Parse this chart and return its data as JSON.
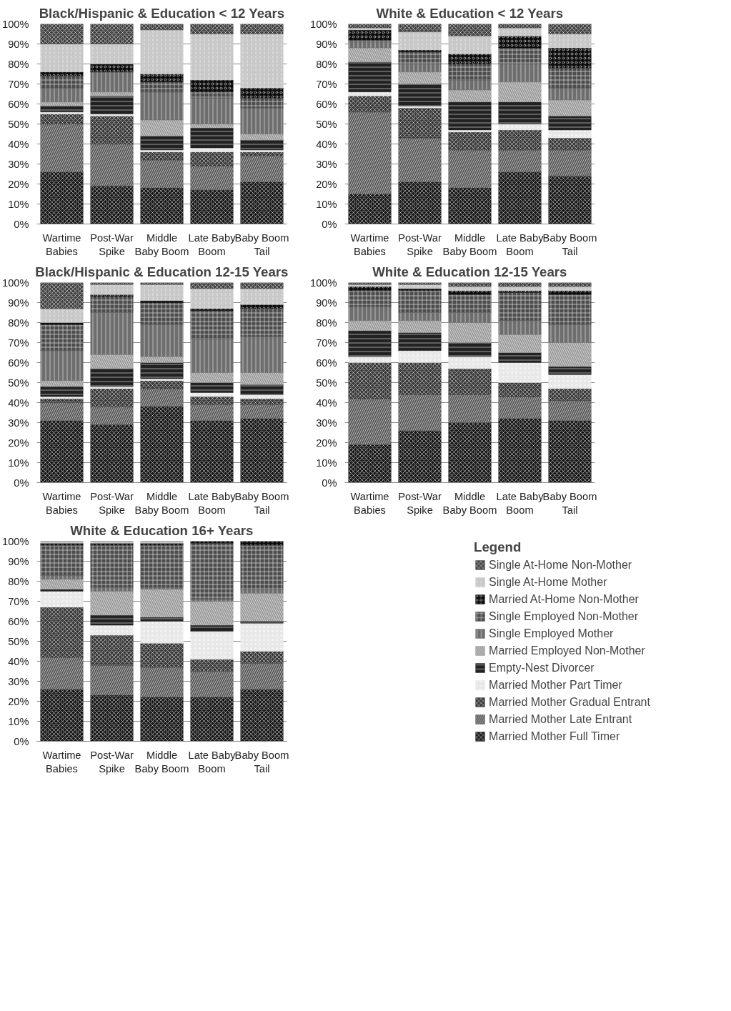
{
  "chart_data": [
    {
      "type": "bar",
      "stacked": true,
      "title": "Black/Hispanic & Education < 12 Years",
      "categories": [
        "Wartime Babies",
        "Post-War Spike",
        "Middle Baby Boom",
        "Late Baby Boom",
        "Baby Boom Tail"
      ],
      "ylim": [
        0,
        100
      ],
      "yticks": [
        {
          "value": 0,
          "label": "0%"
        },
        {
          "value": 10,
          "label": "10%"
        },
        {
          "value": 20,
          "label": "20%"
        },
        {
          "value": 30,
          "label": "30%"
        },
        {
          "value": 40,
          "label": "40%"
        },
        {
          "value": 50,
          "label": "50%"
        },
        {
          "value": 60,
          "label": "60%"
        },
        {
          "value": 70,
          "label": "70%"
        },
        {
          "value": 80,
          "label": "80%"
        },
        {
          "value": 90,
          "label": "90%"
        },
        {
          "value": 100,
          "label": "100%"
        }
      ],
      "grid": "y",
      "legend": "bottom right",
      "legend_title": "Legend",
      "series": [
        {
          "name": "Married Mother Full Timer",
          "color": "#1a1a1a",
          "values": [
            26,
            19,
            18,
            17,
            21
          ]
        },
        {
          "name": "Married Mother Late Entrant",
          "color": "#595959",
          "values": [
            24,
            21,
            14,
            12,
            13
          ]
        },
        {
          "name": "Married Mother Gradual Entrant",
          "color": "#3a3a3a",
          "values": [
            5,
            14,
            4,
            7,
            2
          ]
        },
        {
          "name": "Married Mother Part Timer",
          "color": "#e8e8e8",
          "values": [
            1,
            1,
            1,
            2,
            1
          ]
        },
        {
          "name": "Empty-Nest Divorcer",
          "color": "#222222",
          "values": [
            3,
            9,
            7,
            10,
            5
          ]
        },
        {
          "name": "Married Employed Non-Mother",
          "color": "#9a9a9a",
          "values": [
            2,
            2,
            8,
            2,
            3
          ]
        },
        {
          "name": "Single Employed Mother",
          "color": "#6e6e6e",
          "values": [
            7,
            10,
            14,
            13,
            13
          ]
        },
        {
          "name": "Single Employed Non-Mother",
          "color": "#4d4d4d",
          "values": [
            6,
            0,
            5,
            3,
            5
          ]
        },
        {
          "name": "Married At-Home Non-Mother",
          "color": "#0d0d0d",
          "values": [
            2,
            4,
            4,
            6,
            5
          ]
        },
        {
          "name": "Single At-Home Mother",
          "color": "#c8c8c8",
          "values": [
            14,
            10,
            22,
            23,
            27
          ]
        },
        {
          "name": "Single At-Home Non-Mother",
          "color": "#444444",
          "values": [
            10,
            10,
            3,
            5,
            5
          ]
        }
      ]
    },
    {
      "type": "bar",
      "stacked": true,
      "title": "White & Education < 12 Years",
      "categories": [
        "Wartime Babies",
        "Post-War Spike",
        "Middle Baby Boom",
        "Late Baby Boom",
        "Baby Boom Tail"
      ],
      "ylim": [
        0,
        100
      ],
      "yticks": [
        {
          "value": 0,
          "label": "0%"
        },
        {
          "value": 10,
          "label": "10%"
        },
        {
          "value": 20,
          "label": "20%"
        },
        {
          "value": 30,
          "label": "30%"
        },
        {
          "value": 40,
          "label": "40%"
        },
        {
          "value": 50,
          "label": "50%"
        },
        {
          "value": 60,
          "label": "60%"
        },
        {
          "value": 70,
          "label": "70%"
        },
        {
          "value": 80,
          "label": "80%"
        },
        {
          "value": 90,
          "label": "90%"
        },
        {
          "value": 100,
          "label": "100%"
        }
      ],
      "grid": "y",
      "series": [
        {
          "color": "#1a1a1a",
          "values": [
            15,
            21,
            18,
            26,
            24
          ]
        },
        {
          "color": "#595959",
          "values": [
            41,
            22,
            19,
            11,
            13
          ]
        },
        {
          "color": "#3a3a3a",
          "values": [
            8,
            15,
            9,
            10,
            6
          ]
        },
        {
          "color": "#e8e8e8",
          "values": [
            2,
            1,
            1,
            3,
            4
          ]
        },
        {
          "color": "#222222",
          "values": [
            15,
            11,
            14,
            11,
            7
          ]
        },
        {
          "color": "#9a9a9a",
          "values": [
            7,
            6,
            6,
            10,
            8
          ]
        },
        {
          "color": "#6e6e6e",
          "values": [
            3,
            4,
            5,
            9,
            6
          ]
        },
        {
          "color": "#4d4d4d",
          "values": [
            1,
            6,
            8,
            8,
            10
          ]
        },
        {
          "color": "#0d0d0d",
          "values": [
            5,
            1,
            5,
            6,
            10
          ]
        },
        {
          "color": "#c8c8c8",
          "values": [
            1,
            9,
            9,
            4,
            7
          ]
        },
        {
          "color": "#444444",
          "values": [
            2,
            4,
            6,
            2,
            5
          ]
        }
      ]
    },
    {
      "type": "bar",
      "stacked": true,
      "title": "Black/Hispanic & Education 12-15 Years",
      "categories": [
        "Wartime Babies",
        "Post-War Spike",
        "Middle Baby Boom",
        "Late Baby Boom",
        "Baby Boom Tail"
      ],
      "ylim": [
        0,
        100
      ],
      "yticks": [
        {
          "value": 0,
          "label": "0%"
        },
        {
          "value": 10,
          "label": "10%"
        },
        {
          "value": 20,
          "label": "20%"
        },
        {
          "value": 30,
          "label": "30%"
        },
        {
          "value": 40,
          "label": "40%"
        },
        {
          "value": 50,
          "label": "50%"
        },
        {
          "value": 60,
          "label": "60%"
        },
        {
          "value": 70,
          "label": "70%"
        },
        {
          "value": 80,
          "label": "80%"
        },
        {
          "value": 90,
          "label": "90%"
        },
        {
          "value": 100,
          "label": "100%"
        }
      ],
      "grid": "y",
      "series": [
        {
          "color": "#1a1a1a",
          "values": [
            31,
            29,
            38,
            31,
            32
          ]
        },
        {
          "color": "#595959",
          "values": [
            9,
            9,
            9,
            8,
            7
          ]
        },
        {
          "color": "#3a3a3a",
          "values": [
            2,
            9,
            4,
            4,
            3
          ]
        },
        {
          "color": "#e8e8e8",
          "values": [
            1,
            1,
            1,
            2,
            2
          ]
        },
        {
          "color": "#222222",
          "values": [
            5,
            9,
            8,
            5,
            5
          ]
        },
        {
          "color": "#9a9a9a",
          "values": [
            3,
            7,
            3,
            5,
            6
          ]
        },
        {
          "color": "#6e6e6e",
          "values": [
            15,
            21,
            16,
            17,
            18
          ]
        },
        {
          "color": "#4d4d4d",
          "values": [
            13,
            8,
            11,
            14,
            14
          ]
        },
        {
          "color": "#0d0d0d",
          "values": [
            1,
            1,
            1,
            1,
            2
          ]
        },
        {
          "color": "#c8c8c8",
          "values": [
            7,
            5,
            8,
            10,
            8
          ]
        },
        {
          "color": "#444444",
          "values": [
            13,
            1,
            1,
            3,
            3
          ]
        }
      ]
    },
    {
      "type": "bar",
      "stacked": true,
      "title": "White & Education 12-15 Years",
      "categories": [
        "Wartime Babies",
        "Post-War Spike",
        "Middle Baby Boom",
        "Late Baby Boom",
        "Baby Boom Tail"
      ],
      "ylim": [
        0,
        100
      ],
      "yticks": [
        {
          "value": 0,
          "label": "0%"
        },
        {
          "value": 10,
          "label": "10%"
        },
        {
          "value": 20,
          "label": "20%"
        },
        {
          "value": 30,
          "label": "30%"
        },
        {
          "value": 40,
          "label": "40%"
        },
        {
          "value": 50,
          "label": "50%"
        },
        {
          "value": 60,
          "label": "60%"
        },
        {
          "value": 70,
          "label": "70%"
        },
        {
          "value": 80,
          "label": "80%"
        },
        {
          "value": 90,
          "label": "90%"
        },
        {
          "value": 100,
          "label": "100%"
        }
      ],
      "grid": "y",
      "series": [
        {
          "color": "#1a1a1a",
          "values": [
            19,
            26,
            30,
            32,
            31
          ]
        },
        {
          "color": "#595959",
          "values": [
            23,
            18,
            14,
            11,
            10
          ]
        },
        {
          "color": "#3a3a3a",
          "values": [
            18,
            16,
            13,
            7,
            6
          ]
        },
        {
          "color": "#e8e8e8",
          "values": [
            3,
            6,
            6,
            10,
            7
          ]
        },
        {
          "color": "#222222",
          "values": [
            13,
            9,
            7,
            5,
            4
          ]
        },
        {
          "color": "#9a9a9a",
          "values": [
            5,
            6,
            10,
            9,
            12
          ]
        },
        {
          "color": "#6e6e6e",
          "values": [
            7,
            4,
            5,
            7,
            9
          ]
        },
        {
          "color": "#4d4d4d",
          "values": [
            8,
            11,
            9,
            14,
            15
          ]
        },
        {
          "color": "#0d0d0d",
          "values": [
            2,
            1,
            2,
            1,
            2
          ]
        },
        {
          "color": "#c8c8c8",
          "values": [
            1,
            2,
            2,
            2,
            2
          ]
        },
        {
          "color": "#444444",
          "values": [
            1,
            1,
            2,
            2,
            2
          ]
        }
      ]
    },
    {
      "type": "bar",
      "stacked": true,
      "title": "White & Education 16+ Years",
      "categories": [
        "Wartime Babies",
        "Post-War Spike",
        "Middle Baby Boom",
        "Late Baby Boom",
        "Baby Boom Tail"
      ],
      "ylim": [
        0,
        100
      ],
      "yticks": [
        {
          "value": 0,
          "label": "0%"
        },
        {
          "value": 10,
          "label": "10%"
        },
        {
          "value": 20,
          "label": "20%"
        },
        {
          "value": 30,
          "label": "30%"
        },
        {
          "value": 40,
          "label": "40%"
        },
        {
          "value": 50,
          "label": "50%"
        },
        {
          "value": 60,
          "label": "60%"
        },
        {
          "value": 70,
          "label": "70%"
        },
        {
          "value": 80,
          "label": "80%"
        },
        {
          "value": 90,
          "label": "90%"
        },
        {
          "value": 100,
          "label": "100%"
        }
      ],
      "grid": "y",
      "series": [
        {
          "color": "#1a1a1a",
          "values": [
            26,
            23,
            22,
            22,
            26
          ]
        },
        {
          "color": "#595959",
          "values": [
            16,
            15,
            15,
            13,
            13
          ]
        },
        {
          "color": "#3a3a3a",
          "values": [
            25,
            15,
            12,
            6,
            6
          ]
        },
        {
          "color": "#e8e8e8",
          "values": [
            8,
            5,
            11,
            14,
            14
          ]
        },
        {
          "color": "#222222",
          "values": [
            1,
            5,
            2,
            3,
            1
          ]
        },
        {
          "color": "#9a9a9a",
          "values": [
            5,
            12,
            14,
            12,
            14
          ]
        },
        {
          "color": "#6e6e6e",
          "values": [
            2,
            2,
            1,
            1,
            2
          ]
        },
        {
          "color": "#4d4d4d",
          "values": [
            15,
            21,
            21,
            28,
            22
          ]
        },
        {
          "color": "#0d0d0d",
          "values": [
            1,
            1,
            1,
            1,
            2
          ]
        },
        {
          "color": "#c8c8c8",
          "values": [
            1,
            1,
            1,
            0,
            0
          ]
        },
        {
          "color": "#444444",
          "values": [
            0,
            0,
            0,
            0,
            0
          ]
        }
      ]
    }
  ]
}
